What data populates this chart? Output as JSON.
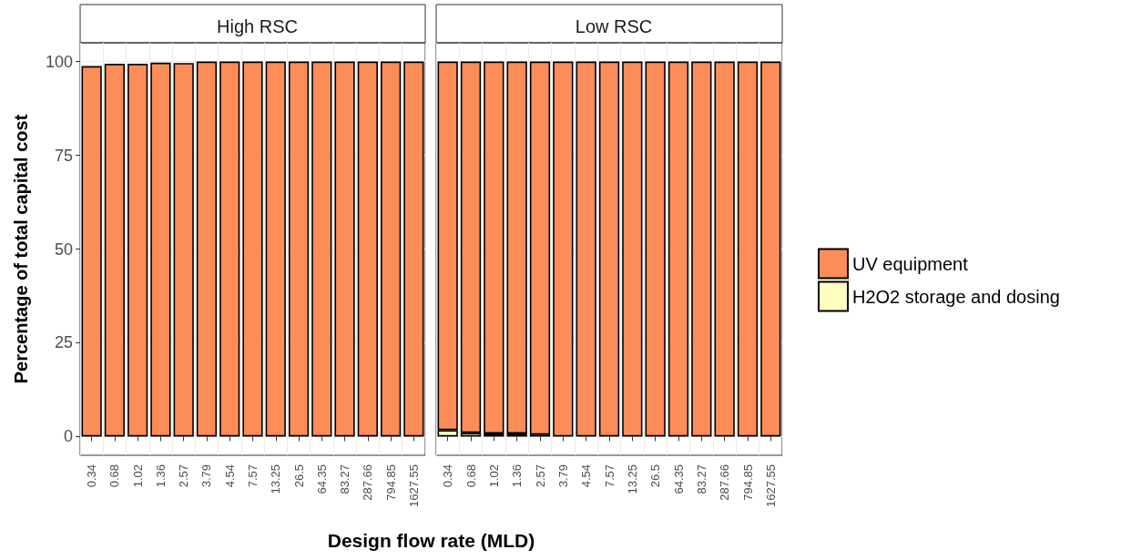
{
  "chart_data": [
    {
      "type": "bar",
      "title": "High RSC",
      "xlabel": "Design flow rate (MLD)",
      "ylabel": "Percentage of total capital cost",
      "stacked": true,
      "grid": true,
      "categories": [
        "0.34",
        "0.68",
        "1.02",
        "1.36",
        "2.57",
        "3.79",
        "4.54",
        "7.57",
        "13.25",
        "26.5",
        "64.35",
        "83.27",
        "287.66",
        "794.85",
        "1627.55"
      ],
      "ylim": [
        -5,
        105
      ],
      "yticks": [
        0,
        25,
        50,
        75,
        100
      ],
      "series": [
        {
          "color": "#fc8d59",
          "values": [
            98.8,
            99.4,
            99.4,
            99.7,
            99.6,
            100,
            100,
            100,
            100,
            100,
            100,
            100,
            100,
            100,
            100
          ]
        }
      ]
    },
    {
      "type": "bar",
      "title": "Low RSC",
      "stacked": true,
      "grid": true,
      "legend": "right",
      "tick_labels": "x",
      "categories": [
        "0.34",
        "0.68",
        "1.02",
        "1.36",
        "2.57",
        "3.79",
        "4.54",
        "7.57",
        "13.25",
        "26.5",
        "64.35",
        "83.27",
        "287.66",
        "794.85",
        "1627.55"
      ],
      "ylim": [
        -5,
        105
      ],
      "yticks": [
        0,
        25,
        50,
        75,
        100
      ],
      "series": [
        {
          "name": "H2O2 storage and dosing",
          "color": "#ffffbf",
          "values": [
            1.7,
            1.0,
            0.8,
            0.8,
            0.5,
            null,
            null,
            null,
            null,
            null,
            null,
            null,
            null,
            null,
            null
          ]
        },
        {
          "name": "UV equipment",
          "color": "#fc8d59",
          "values": [
            98.3,
            99.0,
            99.2,
            99.2,
            99.5,
            100,
            100,
            100,
            100,
            100,
            100,
            100,
            100,
            100,
            100
          ]
        }
      ]
    }
  ]
}
